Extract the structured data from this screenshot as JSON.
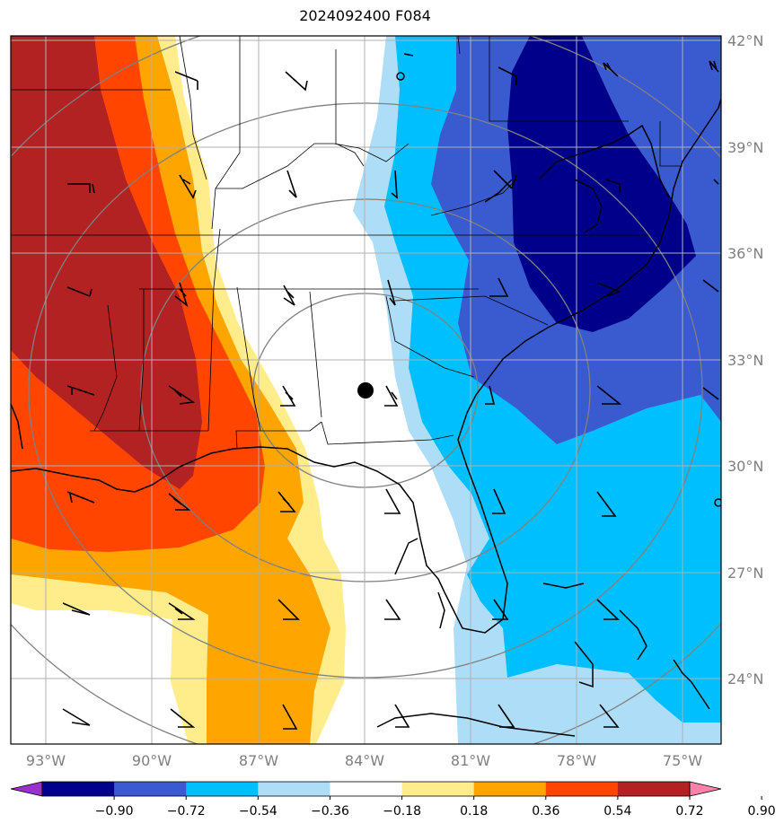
{
  "title": "2024092400 F084",
  "latitude_labels": [
    "42°N",
    "39°N",
    "36°N",
    "33°N",
    "30°N",
    "27°N",
    "24°N"
  ],
  "longitude_labels": [
    "93°W",
    "90°W",
    "87°W",
    "84°W",
    "81°W",
    "78°W",
    "75°W"
  ],
  "colorbar": {
    "ticks": [
      "−0.90",
      "−0.72",
      "−0.54",
      "−0.36",
      "−0.18",
      "0.18",
      "0.36",
      "0.54",
      "0.72",
      "0.90"
    ],
    "colors": [
      "#9b30d0",
      "#00008b",
      "#3a5acf",
      "#00bfff",
      "#aeddf8",
      "#ffffff",
      "#ffec8b",
      "#ffa500",
      "#ff4500",
      "#b22222",
      "#ff82ab"
    ]
  },
  "map_colors": {
    "dark_red": "#b22222",
    "orange_red": "#ff4500",
    "orange": "#ffa500",
    "light_yellow": "#ffec8b",
    "light_blue": "#aeddf8",
    "sky_blue": "#00bfff",
    "royal_blue": "#3a5acf",
    "navy": "#00008b"
  },
  "center_marker": "storm-center-dot"
}
